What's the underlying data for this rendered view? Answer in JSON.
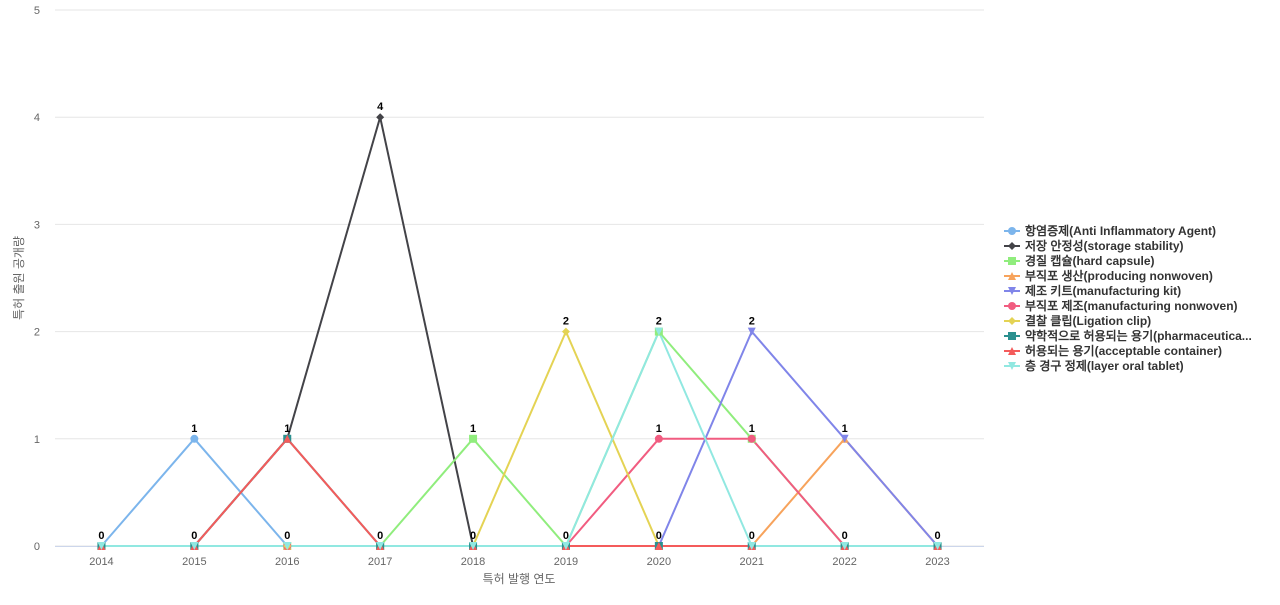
{
  "chart_data": {
    "type": "line",
    "title": "",
    "xlabel": "특허 발행 연도",
    "ylabel": "특허 출원 공개량",
    "categories": [
      "2014",
      "2015",
      "2016",
      "2017",
      "2018",
      "2019",
      "2020",
      "2021",
      "2022",
      "2023"
    ],
    "ylim": [
      0,
      5
    ],
    "yticks": [
      0,
      1,
      2,
      3,
      4,
      5
    ],
    "grid": true,
    "legend_position": "right",
    "series": [
      {
        "name": "항염증제(Anti Inflammatory Agent)",
        "color": "#7cb5ec",
        "marker": "circle",
        "values": [
          0,
          1,
          0,
          0,
          0,
          0,
          0,
          0,
          0,
          0
        ]
      },
      {
        "name": "저장 안정성(storage stability)",
        "color": "#434348",
        "marker": "diamond",
        "values": [
          0,
          0,
          1,
          4,
          0,
          0,
          0,
          0,
          0,
          0
        ]
      },
      {
        "name": "경질 캡슐(hard capsule)",
        "color": "#90ed7d",
        "marker": "square",
        "values": [
          0,
          0,
          0,
          0,
          1,
          0,
          2,
          1,
          0,
          0
        ]
      },
      {
        "name": "부직포 생산(producing nonwoven)",
        "color": "#f7a35c",
        "marker": "triangle",
        "values": [
          0,
          0,
          0,
          0,
          0,
          0,
          0,
          0,
          1,
          0
        ]
      },
      {
        "name": "제조 키트(manufacturing kit)",
        "color": "#8085e9",
        "marker": "triangle-down",
        "values": [
          0,
          0,
          0,
          0,
          0,
          0,
          0,
          2,
          1,
          0
        ]
      },
      {
        "name": "부직포 제조(manufacturing nonwoven)",
        "color": "#f15c80",
        "marker": "circle",
        "values": [
          0,
          0,
          0,
          0,
          0,
          0,
          1,
          1,
          0,
          0
        ]
      },
      {
        "name": "결찰 클립(Ligation clip)",
        "color": "#e4d354",
        "marker": "diamond",
        "values": [
          0,
          0,
          0,
          0,
          0,
          2,
          0,
          0,
          0,
          0
        ]
      },
      {
        "name": "약학적으로 허용되는 용기(pharmaceutica...",
        "color": "#2b908f",
        "marker": "square",
        "values": [
          0,
          0,
          1,
          0,
          0,
          0,
          0,
          0,
          0,
          0
        ]
      },
      {
        "name": "허용되는 용기(acceptable container)",
        "color": "#f45b5b",
        "marker": "triangle",
        "values": [
          0,
          0,
          1,
          0,
          0,
          0,
          0,
          0,
          0,
          0
        ]
      },
      {
        "name": "층 경구 정제(layer oral tablet)",
        "color": "#91e8e1",
        "marker": "triangle-down",
        "values": [
          0,
          0,
          0,
          0,
          0,
          0,
          2,
          0,
          0,
          0
        ]
      }
    ],
    "point_labels": [
      {
        "x": "2014",
        "y": 0,
        "text": "0"
      },
      {
        "x": "2015",
        "y": 1,
        "text": "1"
      },
      {
        "x": "2015",
        "y": 0,
        "text": "0"
      },
      {
        "x": "2016",
        "y": 1,
        "text": "1"
      },
      {
        "x": "2016",
        "y": 0,
        "text": "0"
      },
      {
        "x": "2017",
        "y": 4,
        "text": "4"
      },
      {
        "x": "2017",
        "y": 0,
        "text": "0"
      },
      {
        "x": "2018",
        "y": 1,
        "text": "1"
      },
      {
        "x": "2018",
        "y": 0,
        "text": "0"
      },
      {
        "x": "2019",
        "y": 2,
        "text": "2"
      },
      {
        "x": "2019",
        "y": 0,
        "text": "0"
      },
      {
        "x": "2020",
        "y": 2,
        "text": "2"
      },
      {
        "x": "2020",
        "y": 1,
        "text": "1"
      },
      {
        "x": "2020",
        "y": 0,
        "text": "0"
      },
      {
        "x": "2021",
        "y": 2,
        "text": "2"
      },
      {
        "x": "2021",
        "y": 1,
        "text": "1"
      },
      {
        "x": "2021",
        "y": 0,
        "text": "0"
      },
      {
        "x": "2022",
        "y": 1,
        "text": "1"
      },
      {
        "x": "2022",
        "y": 0,
        "text": "0"
      },
      {
        "x": "2023",
        "y": 0,
        "text": "0"
      }
    ]
  }
}
